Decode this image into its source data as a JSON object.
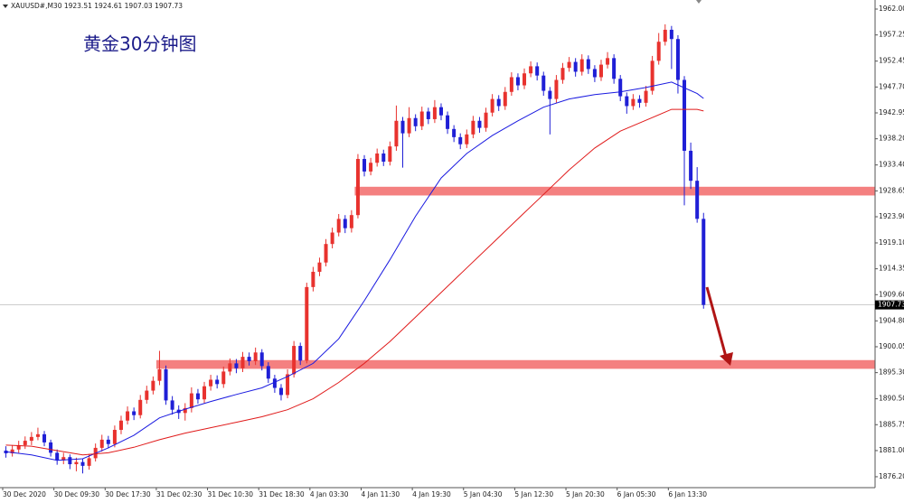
{
  "chart_data": {
    "type": "candlestick",
    "symbol_info": "XAUUSD#,M30 1923.51 1924.61 1907.03 1907.73",
    "title": "黄金30分钟图",
    "categories": [
      "30 Dec 2020",
      null,
      null,
      null,
      null,
      null,
      null,
      null,
      "30 Dec 09:30",
      null,
      null,
      null,
      null,
      null,
      null,
      null,
      "30 Dec 17:30",
      null,
      null,
      null,
      null,
      null,
      null,
      null,
      "31 Dec 02:30",
      null,
      null,
      null,
      null,
      null,
      null,
      null,
      "31 Dec 10:30",
      null,
      null,
      null,
      null,
      null,
      null,
      null,
      "31 Dec 18:30",
      null,
      null,
      null,
      null,
      null,
      null,
      null,
      "4 Jan 03:30",
      null,
      null,
      null,
      null,
      null,
      null,
      null,
      "4 Jan 11:30",
      null,
      null,
      null,
      null,
      null,
      null,
      null,
      "4 Jan 19:30",
      null,
      null,
      null,
      null,
      null,
      null,
      null,
      "5 Jan 04:30",
      null,
      null,
      null,
      null,
      null,
      null,
      null,
      "5 Jan 12:30",
      null,
      null,
      null,
      null,
      null,
      null,
      null,
      "5 Jan 20:30",
      null,
      null,
      null,
      null,
      null,
      null,
      null,
      "6 Jan 05:30",
      null,
      null,
      null,
      null,
      null,
      null,
      null,
      "6 Jan 13:30",
      null,
      null,
      null,
      null,
      null
    ],
    "open": [
      1881.0,
      1880.5,
      1881.2,
      1882.0,
      1882.8,
      1883.5,
      1884.0,
      1882.5,
      1880.6,
      1879.2,
      1879.8,
      1878.5,
      1878.9,
      1878.2,
      1879.6,
      1881.5,
      1883.0,
      1882.2,
      1884.8,
      1886.5,
      1888.2,
      1887.5,
      1890.3,
      1892.0,
      1893.8,
      1895.9,
      1890.2,
      1888.5,
      1887.9,
      1888.8,
      1891.5,
      1890.4,
      1892.8,
      1894.0,
      1893.2,
      1895.5,
      1897.0,
      1896.1,
      1898.2,
      1897.4,
      1899.0,
      1896.5,
      1894.2,
      1892.5,
      1891.2,
      1895.0,
      1900.2,
      1897.5,
      1911.0,
      1913.8,
      1915.5,
      1918.9,
      1921.0,
      1923.5,
      1921.8,
      1924.2,
      1934.5,
      1932.2,
      1933.8,
      1935.5,
      1934.0,
      1936.8,
      1941.5,
      1939.2,
      1942.0,
      1940.5,
      1943.2,
      1941.8,
      1944.0,
      1942.5,
      1940.0,
      1938.5,
      1937.2,
      1939.0,
      1941.5,
      1940.2,
      1943.0,
      1945.5,
      1944.2,
      1946.8,
      1949.5,
      1948.0,
      1950.2,
      1951.5,
      1949.8,
      1947.0,
      1945.5,
      1949.0,
      1951.2,
      1952.3,
      1950.5,
      1952.8,
      1951.0,
      1949.5,
      1951.8,
      1953.0,
      1949.2,
      1946.0,
      1944.2,
      1945.5,
      1944.8,
      1947.0,
      1952.5,
      1956.0,
      1958.2,
      1956.5,
      1949.0,
      1936.0,
      1930.5,
      1923.51
    ],
    "high": [
      1881.8,
      1882.0,
      1882.8,
      1883.6,
      1884.4,
      1885.2,
      1884.6,
      1883.0,
      1881.2,
      1880.6,
      1880.3,
      1879.7,
      1879.5,
      1880.4,
      1882.3,
      1883.9,
      1883.7,
      1885.6,
      1887.4,
      1889.1,
      1888.9,
      1891.2,
      1892.9,
      1894.6,
      1899.3,
      1896.6,
      1891.0,
      1889.3,
      1889.7,
      1892.6,
      1892.3,
      1893.6,
      1894.9,
      1894.8,
      1896.4,
      1897.9,
      1897.8,
      1899.1,
      1899.0,
      1899.9,
      1899.6,
      1897.2,
      1894.9,
      1893.2,
      1895.9,
      1901.1,
      1900.8,
      1911.8,
      1914.7,
      1916.4,
      1919.8,
      1921.9,
      1924.4,
      1924.2,
      1925.1,
      1935.4,
      1935.2,
      1934.7,
      1936.4,
      1936.2,
      1937.7,
      1944.3,
      1942.2,
      1944.0,
      1942.7,
      1944.1,
      1943.9,
      1945.3,
      1944.7,
      1943.2,
      1940.7,
      1939.2,
      1939.9,
      1942.4,
      1942.2,
      1943.9,
      1946.4,
      1946.2,
      1947.7,
      1950.4,
      1950.2,
      1951.1,
      1952.4,
      1952.2,
      1950.5,
      1947.7,
      1949.9,
      1952.1,
      1953.2,
      1953.0,
      1953.7,
      1953.5,
      1951.7,
      1952.7,
      1954.1,
      1953.7,
      1949.9,
      1946.7,
      1946.4,
      1946.2,
      1947.9,
      1953.4,
      1957.6,
      1959.2,
      1958.9,
      1957.2,
      1949.7,
      1937.5,
      1933.0,
      1924.61
    ],
    "low": [
      1879.7,
      1879.9,
      1880.6,
      1881.3,
      1882.0,
      1882.9,
      1881.8,
      1879.9,
      1878.4,
      1878.5,
      1877.6,
      1877.2,
      1876.8,
      1877.5,
      1879.0,
      1880.8,
      1881.4,
      1881.6,
      1884.0,
      1885.8,
      1886.6,
      1886.9,
      1889.6,
      1891.3,
      1893.0,
      1889.4,
      1887.6,
      1886.8,
      1886.5,
      1888.0,
      1889.6,
      1889.7,
      1892.0,
      1892.4,
      1892.5,
      1894.8,
      1895.2,
      1895.4,
      1896.6,
      1896.7,
      1895.7,
      1893.4,
      1891.6,
      1890.2,
      1890.6,
      1894.4,
      1896.7,
      1897.0,
      1910.2,
      1913.0,
      1914.8,
      1918.1,
      1920.3,
      1920.9,
      1921.0,
      1923.6,
      1931.3,
      1931.5,
      1933.1,
      1933.2,
      1933.3,
      1936.0,
      1932.9,
      1938.5,
      1939.6,
      1939.8,
      1940.9,
      1941.1,
      1941.6,
      1939.1,
      1937.6,
      1936.3,
      1936.5,
      1938.3,
      1939.3,
      1939.5,
      1942.3,
      1943.3,
      1943.5,
      1946.1,
      1947.1,
      1947.3,
      1949.5,
      1948.9,
      1946.1,
      1939.0,
      1944.8,
      1948.3,
      1950.5,
      1949.6,
      1949.8,
      1950.1,
      1948.6,
      1948.8,
      1951.1,
      1948.3,
      1945.1,
      1942.8,
      1943.5,
      1943.9,
      1944.1,
      1946.3,
      1951.8,
      1955.3,
      1951.0,
      1946.5,
      1926.0,
      1929.0,
      1922.8,
      1907.03
    ],
    "close": [
      1880.5,
      1881.2,
      1882.0,
      1882.8,
      1883.5,
      1884.0,
      1882.5,
      1880.6,
      1879.2,
      1879.8,
      1878.5,
      1878.9,
      1878.2,
      1879.6,
      1881.5,
      1883.0,
      1882.2,
      1884.8,
      1886.5,
      1888.2,
      1887.5,
      1890.3,
      1892.0,
      1893.8,
      1895.9,
      1890.2,
      1888.5,
      1887.9,
      1888.8,
      1891.5,
      1890.4,
      1892.8,
      1894.0,
      1893.2,
      1895.5,
      1897.0,
      1896.1,
      1898.2,
      1897.4,
      1899.0,
      1896.5,
      1894.2,
      1892.5,
      1891.2,
      1895.0,
      1900.2,
      1897.5,
      1911.0,
      1913.8,
      1915.5,
      1918.9,
      1921.0,
      1923.5,
      1921.8,
      1924.2,
      1934.5,
      1932.2,
      1933.8,
      1935.5,
      1934.0,
      1936.8,
      1941.5,
      1939.2,
      1942.0,
      1940.5,
      1943.2,
      1941.8,
      1944.0,
      1942.5,
      1940.0,
      1938.5,
      1937.2,
      1939.0,
      1941.5,
      1940.2,
      1943.0,
      1945.5,
      1944.2,
      1946.8,
      1949.5,
      1948.0,
      1950.2,
      1951.5,
      1949.8,
      1947.0,
      1945.5,
      1949.0,
      1951.2,
      1952.3,
      1950.5,
      1952.8,
      1951.0,
      1949.5,
      1951.8,
      1953.0,
      1949.2,
      1946.0,
      1944.2,
      1945.5,
      1944.8,
      1947.0,
      1952.5,
      1956.0,
      1958.2,
      1956.5,
      1949.0,
      1936.0,
      1930.5,
      1923.51,
      1907.73
    ],
    "up_color": "#e8322e",
    "down_color": "#1f1fd6",
    "lines": [
      {
        "color": "#1a1ae0",
        "x": [
          0,
          4,
          8,
          12,
          16,
          20,
          24,
          28,
          32,
          36,
          40,
          44,
          48,
          52,
          56,
          60,
          64,
          68,
          72,
          76,
          80,
          84,
          88,
          92,
          96,
          100,
          104,
          108,
          109
        ],
        "values": [
          1880.8,
          1880.2,
          1879.2,
          1879.5,
          1881.5,
          1883.8,
          1887.0,
          1888.6,
          1890.0,
          1891.3,
          1892.5,
          1894.6,
          1897.0,
          1901.5,
          1908.5,
          1916.0,
          1924.0,
          1931.0,
          1935.5,
          1938.8,
          1941.5,
          1944.0,
          1945.5,
          1946.3,
          1946.8,
          1947.6,
          1948.6,
          1946.5,
          1945.6
        ]
      },
      {
        "color": "#e01a1a",
        "x": [
          0,
          4,
          8,
          12,
          16,
          20,
          24,
          28,
          32,
          36,
          40,
          44,
          48,
          52,
          56,
          60,
          64,
          68,
          72,
          76,
          80,
          84,
          88,
          92,
          96,
          100,
          104,
          108,
          109
        ],
        "values": [
          1882.0,
          1881.8,
          1881.0,
          1880.2,
          1880.6,
          1881.6,
          1883.0,
          1884.2,
          1885.2,
          1886.2,
          1887.2,
          1888.5,
          1890.5,
          1893.5,
          1897.0,
          1901.0,
          1905.5,
          1910.0,
          1914.5,
          1919.0,
          1923.5,
          1928.0,
          1932.5,
          1936.5,
          1939.6,
          1941.6,
          1943.6,
          1943.6,
          1943.3
        ]
      }
    ],
    "zones": [
      {
        "from": 1927.8,
        "to": 1929.4,
        "x_start": 55,
        "color": "#f48080"
      },
      {
        "from": 1896.0,
        "to": 1897.6,
        "x_start": 24,
        "color": "#f48080"
      }
    ],
    "last_price": 1907.73,
    "ylim": [
      1874.2,
      1963.66
    ],
    "yticks": [
      {
        "value": 1962,
        "label": "1962.00"
      },
      1957.25,
      1952.45,
      {
        "value": 1947.7,
        "label": "1947.70"
      },
      1942.95,
      {
        "value": 1938.2,
        "label": "1938.20"
      },
      {
        "value": 1933.4,
        "label": "1933.40"
      },
      1928.65,
      {
        "value": 1923.9,
        "label": "1923.90"
      },
      {
        "value": 1919.1,
        "label": "1919.10"
      },
      1914.35,
      {
        "value": 1909.6,
        "label": "1909.60"
      },
      {
        "value": 1904.8,
        "label": "1904.80"
      },
      1900.05,
      {
        "value": 1895.3,
        "label": "1895.30"
      },
      {
        "value": 1890.5,
        "label": "1890.50"
      },
      1885.75,
      {
        "value": 1881,
        "label": "1881.00"
      },
      {
        "value": 1876.2,
        "label": "1876.20"
      }
    ]
  }
}
